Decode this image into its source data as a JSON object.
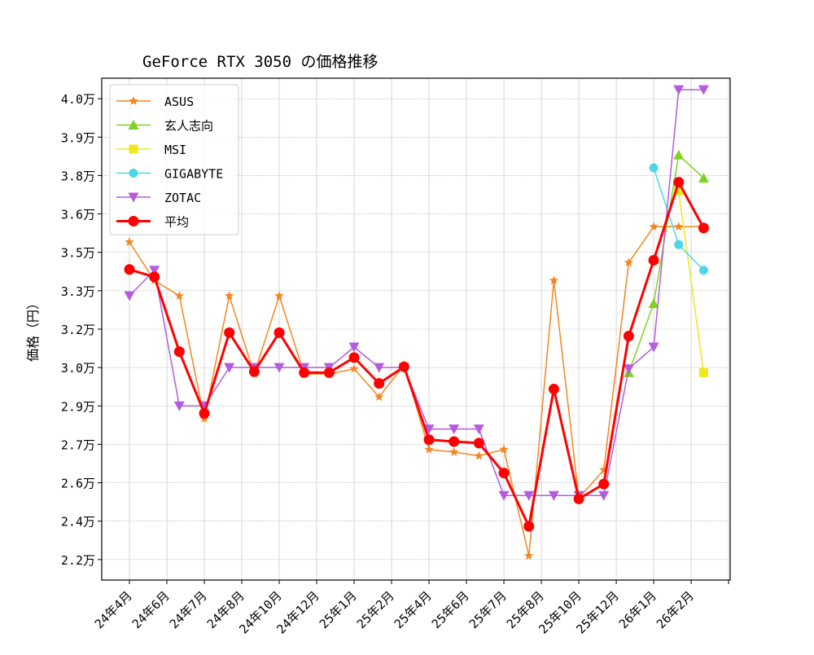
{
  "chart_data": {
    "type": "line",
    "title": "GeForce RTX 3050 の価格推移",
    "xlabel": "",
    "ylabel": "価格（円）",
    "grid": true,
    "legend_placement": "upper-left",
    "ylim": [
      21700,
      41300
    ],
    "x_tick_labels": [
      "24年4月",
      "24年6月",
      "24年7月",
      "24年8月",
      "24年10月",
      "24年12月",
      "25年1月",
      "25年2月",
      "25年4月",
      "25年6月",
      "25年7月",
      "25年8月",
      "25年10月",
      "25年12月",
      "26年1月",
      "26年2月"
    ],
    "y_ticks": [
      {
        "value": 22500,
        "label": "2.2万"
      },
      {
        "value": 24000,
        "label": "2.4万"
      },
      {
        "value": 25500,
        "label": "2.6万"
      },
      {
        "value": 27000,
        "label": "2.7万"
      },
      {
        "value": 28500,
        "label": "2.9万"
      },
      {
        "value": 30000,
        "label": "3.0万"
      },
      {
        "value": 31500,
        "label": "3.2万"
      },
      {
        "value": 33000,
        "label": "3.3万"
      },
      {
        "value": 34500,
        "label": "3.5万"
      },
      {
        "value": 36000,
        "label": "3.6万"
      },
      {
        "value": 37500,
        "label": "3.8万"
      },
      {
        "value": 39000,
        "label": "3.9万"
      },
      {
        "value": 40500,
        "label": "4.0万"
      }
    ],
    "series": [
      {
        "name": "ASUS",
        "color": "#f5861f",
        "marker": "star",
        "width": 1.5,
        "values": [
          34900,
          33400,
          32800,
          28000,
          32800,
          29750,
          32800,
          29750,
          29750,
          29950,
          28850,
          30100,
          26800,
          26700,
          26550,
          26800,
          22650,
          33400,
          24900,
          26000,
          34100,
          35500,
          35500,
          35500
        ]
      },
      {
        "name": "玄人志向",
        "color": "#7ed321",
        "marker": "triangle-up",
        "width": 1.5,
        "values": [
          null,
          null,
          null,
          null,
          null,
          null,
          null,
          null,
          null,
          null,
          null,
          null,
          null,
          null,
          null,
          null,
          null,
          null,
          null,
          null,
          29800,
          32500,
          38300,
          37400
        ]
      },
      {
        "name": "MSI",
        "color": "#f0e81a",
        "marker": "square",
        "width": 1.5,
        "values": [
          null,
          null,
          null,
          null,
          null,
          null,
          null,
          null,
          null,
          null,
          null,
          null,
          null,
          null,
          null,
          null,
          null,
          null,
          null,
          null,
          null,
          null,
          36900,
          29800
        ]
      },
      {
        "name": "GIGABYTE",
        "color": "#4dd5e8",
        "marker": "circle",
        "width": 1.5,
        "values": [
          null,
          null,
          null,
          null,
          null,
          null,
          null,
          null,
          null,
          null,
          null,
          null,
          null,
          null,
          null,
          null,
          null,
          null,
          null,
          null,
          null,
          37800,
          34800,
          33800
        ]
      },
      {
        "name": "ZOTAC",
        "color": "#b45be0",
        "marker": "triangle-down",
        "width": 1.5,
        "values": [
          32800,
          33800,
          28500,
          28500,
          30000,
          30000,
          30000,
          30000,
          30000,
          30800,
          30000,
          30000,
          27600,
          27600,
          27600,
          25000,
          25000,
          25000,
          25000,
          25000,
          29950,
          30800,
          40850,
          40850
        ]
      },
      {
        "name": "平均",
        "color": "#ff0000",
        "marker": "circle",
        "width": 3,
        "values": [
          33830,
          33540,
          30620,
          28210,
          31360,
          29840,
          31360,
          29800,
          29800,
          30390,
          29380,
          30030,
          27180,
          27110,
          27050,
          25880,
          23800,
          29160,
          24870,
          25450,
          31230,
          34190,
          37240,
          35450
        ]
      }
    ]
  }
}
